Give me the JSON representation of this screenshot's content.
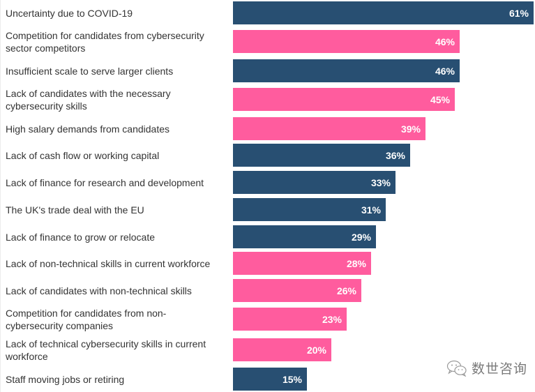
{
  "chart_data": {
    "type": "bar",
    "orientation": "horizontal",
    "title": "",
    "xlabel": "",
    "ylabel": "",
    "xlim": [
      0,
      61
    ],
    "grid": false,
    "legend": "none",
    "value_suffix": "%",
    "colors": {
      "navy": "#284F72",
      "pink": "#FF5C9E"
    },
    "categories": [
      "Uncertainty due to COVID-19",
      "Competition for candidates from cybersecurity sector competitors",
      "Insufficient scale to serve larger clients",
      "Lack of candidates with the necessary cybersecurity skills",
      "High salary demands from candidates",
      "Lack of cash flow or working capital",
      "Lack of finance for research and development",
      "The UK's trade deal with the EU",
      "Lack of finance to grow or relocate",
      "Lack of non-technical skills in current workforce",
      "Lack of candidates with non-technical skills",
      "Competition for candidates from non-cybersecurity companies",
      "Lack of technical cybersecurity skills in current workforce",
      "Staff moving jobs or retiring"
    ],
    "label_lines": [
      [
        "Uncertainty due to COVID-19"
      ],
      [
        "Competition for candidates from cybersecurity",
        "sector competitors"
      ],
      [
        "Insufficient scale to serve larger clients"
      ],
      [
        "Lack of candidates with the necessary",
        "cybersecurity skills"
      ],
      [
        "High salary demands from candidates"
      ],
      [
        "Lack of cash flow or working capital"
      ],
      [
        "Lack of finance for research and development"
      ],
      [
        "The UK's trade deal with the EU"
      ],
      [
        "Lack of finance to grow or relocate"
      ],
      [
        "Lack of non-technical skills in current workforce"
      ],
      [
        "Lack of candidates with non-technical skills"
      ],
      [
        "Competition for candidates from non-",
        "cybersecurity companies"
      ],
      [
        "Lack of technical cybersecurity skills in current",
        "workforce"
      ],
      [
        "Staff moving jobs or retiring"
      ]
    ],
    "values": [
      61,
      46,
      46,
      45,
      39,
      36,
      33,
      31,
      29,
      28,
      26,
      23,
      20,
      15
    ],
    "value_labels": [
      "61%",
      "46%",
      "46%",
      "45%",
      "39%",
      "36%",
      "33%",
      "31%",
      "29%",
      "28%",
      "26%",
      "23%",
      "20%",
      "15%"
    ],
    "bar_colors": [
      "navy",
      "pink",
      "navy",
      "pink",
      "pink",
      "navy",
      "navy",
      "navy",
      "navy",
      "pink",
      "pink",
      "pink",
      "pink",
      "navy"
    ]
  },
  "watermark": {
    "icon": "wechat-icon",
    "text": "数世咨询"
  }
}
